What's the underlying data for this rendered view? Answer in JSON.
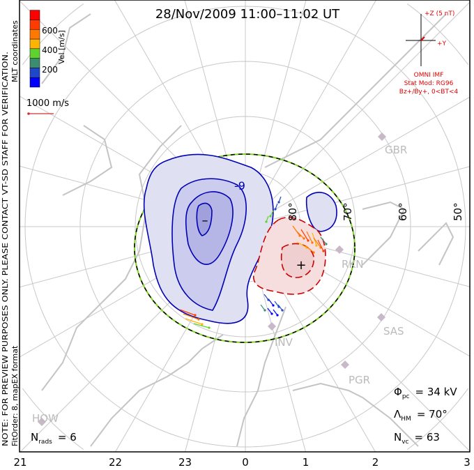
{
  "chart_data": {
    "type": "polar-convection-map",
    "title": "28/Nov/2009  11:00–11:02 UT",
    "coordinates_label": "MLT coordinates",
    "preview_note": "NOTE: FOR PREVIEW PURPOSES ONLY. PLEASE CONTACT VT-SD STAFF FOR VERIFICATION.",
    "fit_note": "FitOrder: 8, mapEX format",
    "colorbar": {
      "label": "Vel [m/s]",
      "ticks": [
        "200",
        "400",
        "600"
      ],
      "range": [
        0,
        800
      ],
      "colors": [
        "#0000ff",
        "#1f48c8",
        "#3c8c70",
        "#60d22e",
        "#ffb400",
        "#ff7800",
        "#ff3c00",
        "#ff0000"
      ]
    },
    "reference_vector": {
      "label": "1000 m/s",
      "value": 1000
    },
    "imf": {
      "z_label": "+Z (5 nT)",
      "y_label": "+Y",
      "source": "OMNI IMF",
      "model": "Stat Mod: RG96",
      "condition": "Bz+/By+, 0<BT<4",
      "by": 1,
      "bz": 1
    },
    "latitude_labels": [
      "80°",
      "70°",
      "60°",
      "50°"
    ],
    "latitudes": [
      80,
      70,
      60,
      50
    ],
    "mlt_ticks": [
      "21",
      "22",
      "23",
      "0",
      "1",
      "2",
      "3"
    ],
    "stations": [
      "GBR",
      "RKN",
      "SAS",
      "INV",
      "PGR",
      "HOW"
    ],
    "contour_label": "-9",
    "dusk_cell_symbol": "–",
    "dawn_cell_symbol": "+",
    "stats": {
      "phi_pc_label": "Φ",
      "phi_pc_sub": "pc",
      "phi_pc_value": "= 34 kV",
      "lambda_hm_label": "Λ",
      "lambda_hm_sub": "HM",
      "lambda_hm_value": "= 70°",
      "n_vc_label": "N",
      "n_vc_sub": "vc",
      "n_vc_value": "= 63",
      "n_rads_label": "N",
      "n_rads_sub": "rads",
      "n_rads_value": "= 6"
    },
    "potential_kv": 34,
    "hm_boundary_lat": 70,
    "n_vectors": 63,
    "n_radars": 6
  }
}
